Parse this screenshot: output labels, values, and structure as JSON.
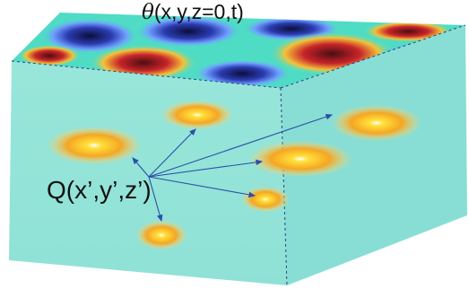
{
  "labels": {
    "surface_symbol": "θ",
    "surface_args": "(x,y,z=0,t)",
    "source_point": "Q(x’,y’,z’)"
  },
  "colors": {
    "volume": "#8fe3d6",
    "volume_side": "#7cdad0",
    "arrows": "#2b4fa8",
    "edges_dashed": "#2b3f8a"
  }
}
